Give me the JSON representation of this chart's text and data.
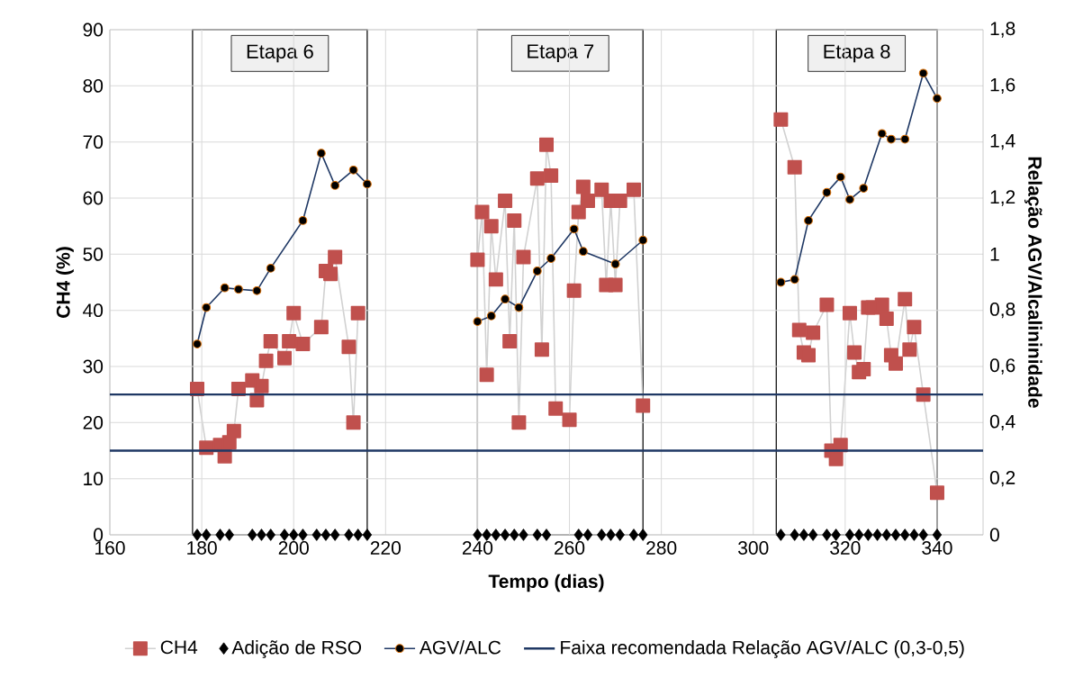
{
  "chart_data": {
    "type": "line",
    "xlabel": "Tempo (dias)",
    "ylabel": "CH4 (%)",
    "y2label": "Relação AGV/Alcalininidade",
    "xlim": [
      160,
      350
    ],
    "xticks": [
      160,
      180,
      200,
      220,
      240,
      260,
      280,
      300,
      320,
      340
    ],
    "ylim": [
      0,
      90
    ],
    "yticks": [
      0,
      10,
      20,
      30,
      40,
      50,
      60,
      70,
      80,
      90
    ],
    "y2lim": [
      0,
      1.8
    ],
    "y2ticks": [
      0,
      {
        "value": 0.2,
        "label": "0,2"
      },
      {
        "value": 0.4,
        "label": "0,4"
      },
      {
        "value": 0.6,
        "label": "0,6"
      },
      {
        "value": 0.8,
        "label": "0,8"
      },
      1,
      {
        "value": 1.2,
        "label": "1,2"
      },
      {
        "value": 1.4,
        "label": "1,4"
      },
      {
        "value": 1.6,
        "label": "1,6"
      },
      {
        "value": 1.8,
        "label": "1,8"
      }
    ],
    "grid": true,
    "legend": "bottom",
    "series": [
      {
        "name": "CH4",
        "marker": "square",
        "color": "#c0504d",
        "x": [
          179,
          181,
          184,
          185,
          186,
          187,
          188,
          191,
          192,
          193,
          194,
          195,
          198,
          199,
          200,
          202,
          206,
          207,
          208,
          209,
          212,
          213,
          214,
          228,
          240,
          241,
          242,
          243,
          244,
          246,
          247,
          248,
          249,
          250,
          253,
          254,
          255,
          256,
          257,
          260,
          261,
          262,
          263,
          264,
          267,
          268,
          269,
          270,
          271,
          274,
          276,
          290,
          306,
          309,
          310,
          311,
          312,
          313,
          316,
          317,
          318,
          319,
          321,
          322,
          323,
          324,
          325,
          326,
          328,
          329,
          330,
          331,
          333,
          334,
          335,
          337,
          340
        ],
        "values": [
          26,
          15.5,
          16,
          14,
          16.5,
          18.5,
          26,
          27.5,
          24,
          26.5,
          31,
          34.5,
          31.5,
          34.5,
          39.5,
          34,
          37,
          47,
          46.5,
          49.5,
          33.5,
          20,
          39.5,
          null,
          49,
          57.5,
          28.5,
          55,
          45.5,
          59.5,
          34.5,
          56,
          20,
          49.5,
          63.5,
          33,
          69.5,
          64,
          22.5,
          20.5,
          43.5,
          57.5,
          62,
          59.5,
          61.5,
          44.5,
          59.5,
          44.5,
          59.5,
          61.5,
          23,
          null,
          74,
          65.5,
          36.5,
          32.5,
          32,
          36,
          41,
          15,
          13.5,
          16,
          39.5,
          32.5,
          29,
          29.5,
          40.5,
          40.5,
          41,
          38.5,
          32,
          30.5,
          42,
          33,
          37,
          25,
          7.5
        ]
      },
      {
        "name": "Adição de RSO",
        "type": "scatter",
        "marker": "diamond",
        "color": "#000000",
        "x": [
          179,
          181,
          184,
          186,
          191,
          193,
          195,
          198,
          200,
          202,
          205,
          207,
          209,
          212,
          214,
          216,
          240,
          242,
          244,
          246,
          248,
          250,
          253,
          255,
          262,
          264,
          267,
          269,
          271,
          274,
          276,
          306,
          309,
          311,
          313,
          316,
          318,
          321,
          323,
          325,
          327,
          329,
          331,
          333,
          335,
          337,
          340
        ],
        "values": [
          0,
          0,
          0,
          0,
          0,
          0,
          0,
          0,
          0,
          0,
          0,
          0,
          0,
          0,
          0,
          0,
          0,
          0,
          0,
          0,
          0,
          0,
          0,
          0,
          0,
          0,
          0,
          0,
          0,
          0,
          0,
          0,
          0,
          0,
          0,
          0,
          0,
          0,
          0,
          0,
          0,
          0,
          0,
          0,
          0,
          0,
          0
        ]
      },
      {
        "name": "AGV/ALC",
        "marker": "circle",
        "axis": "y2",
        "color": "#1f3864",
        "x": [
          179,
          181,
          185,
          188,
          192,
          195,
          202,
          206,
          209,
          213,
          216,
          228,
          240,
          243,
          246,
          249,
          253,
          256,
          261,
          263,
          270,
          276,
          290,
          306,
          309,
          312,
          316,
          319,
          321,
          324,
          328,
          330,
          333,
          337,
          340
        ],
        "values": [
          0.68,
          0.81,
          0.88,
          0.875,
          0.87,
          0.95,
          1.12,
          1.36,
          1.245,
          1.3,
          1.25,
          null,
          0.76,
          0.78,
          0.84,
          0.81,
          0.94,
          0.985,
          1.09,
          1.01,
          0.965,
          1.05,
          null,
          0.9,
          0.91,
          1.12,
          1.22,
          1.275,
          1.195,
          1.235,
          1.43,
          1.41,
          1.41,
          1.645,
          1.555
        ]
      }
    ],
    "ref_lines": [
      {
        "axis": "y2",
        "value": 0.5,
        "color": "#1f3864",
        "label": "Faixa recomendada Relação AGV/ALC (0,3-0,5)"
      },
      {
        "axis": "y2",
        "value": 0.3,
        "color": "#1f3864"
      }
    ],
    "bands": [
      {
        "axis": "x",
        "from": 178,
        "to": 216,
        "label": "Etapa 6",
        "color": "#ffffff"
      },
      {
        "axis": "x",
        "from": 240,
        "to": 276,
        "label": "Etapa 7",
        "color": "#ffffff"
      },
      {
        "axis": "x",
        "from": 305,
        "to": 340,
        "label": "Etapa 8",
        "color": "#ffffff"
      }
    ]
  }
}
